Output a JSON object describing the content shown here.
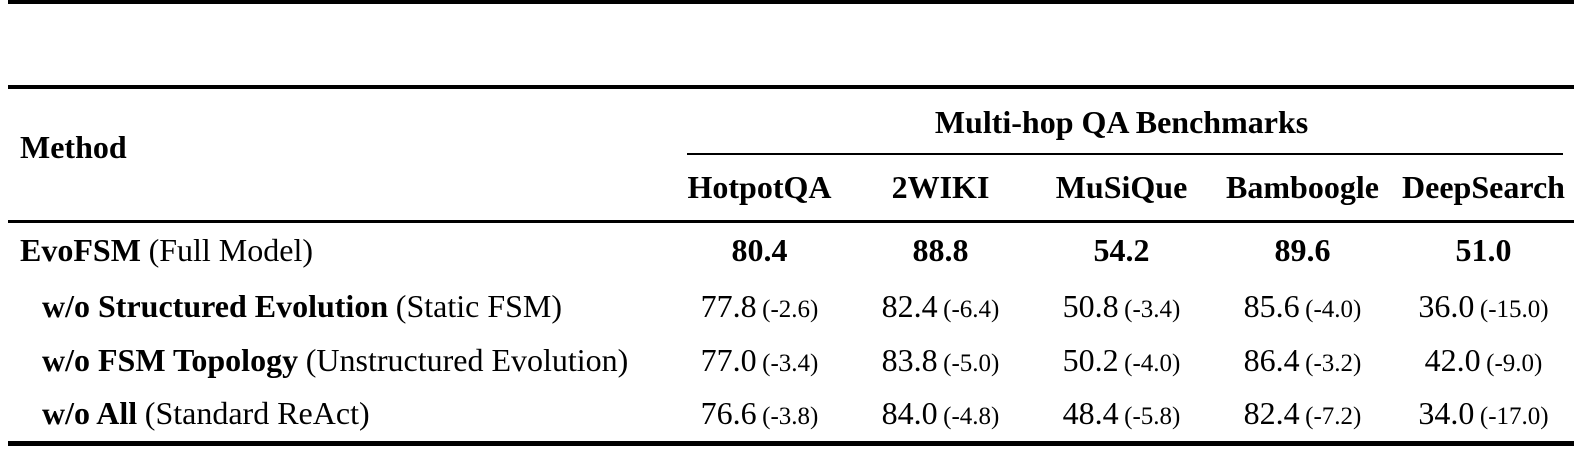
{
  "colors": {
    "background": "#ffffff",
    "text": "#000000",
    "rule": "#000000"
  },
  "table": {
    "method_header": "Method",
    "group_header": "Multi-hop QA Benchmarks",
    "columns": [
      "HotpotQA",
      "2WIKI",
      "MuSiQue",
      "Bamboogle",
      "DeepSearch"
    ],
    "rows": [
      {
        "label_bold": "EvoFSM",
        "label_paren": "(Full Model)",
        "indent": false,
        "values_bold": true,
        "cells": [
          {
            "value": "80.4",
            "delta": ""
          },
          {
            "value": "88.8",
            "delta": ""
          },
          {
            "value": "54.2",
            "delta": ""
          },
          {
            "value": "89.6",
            "delta": ""
          },
          {
            "value": "51.0",
            "delta": ""
          }
        ]
      },
      {
        "label_bold": "w/o Structured Evolution",
        "label_paren": "(Static FSM)",
        "indent": true,
        "values_bold": false,
        "cells": [
          {
            "value": "77.8",
            "delta": "(-2.6)"
          },
          {
            "value": "82.4",
            "delta": "(-6.4)"
          },
          {
            "value": "50.8",
            "delta": "(-3.4)"
          },
          {
            "value": "85.6",
            "delta": "(-4.0)"
          },
          {
            "value": "36.0",
            "delta": "(-15.0)"
          }
        ]
      },
      {
        "label_bold": "w/o FSM Topology",
        "label_paren": "(Unstructured Evolution)",
        "indent": true,
        "values_bold": false,
        "cells": [
          {
            "value": "77.0",
            "delta": "(-3.4)"
          },
          {
            "value": "83.8",
            "delta": "(-5.0)"
          },
          {
            "value": "50.2",
            "delta": "(-4.0)"
          },
          {
            "value": "86.4",
            "delta": "(-3.2)"
          },
          {
            "value": "42.0",
            "delta": "(-9.0)"
          }
        ]
      },
      {
        "label_bold": "w/o All",
        "label_paren": "(Standard ReAct)",
        "indent": true,
        "values_bold": false,
        "cells": [
          {
            "value": "76.6",
            "delta": "(-3.8)"
          },
          {
            "value": "84.0",
            "delta": "(-4.8)"
          },
          {
            "value": "48.4",
            "delta": "(-5.8)"
          },
          {
            "value": "82.4",
            "delta": "(-7.2)"
          },
          {
            "value": "34.0",
            "delta": "(-17.0)"
          }
        ]
      }
    ]
  }
}
